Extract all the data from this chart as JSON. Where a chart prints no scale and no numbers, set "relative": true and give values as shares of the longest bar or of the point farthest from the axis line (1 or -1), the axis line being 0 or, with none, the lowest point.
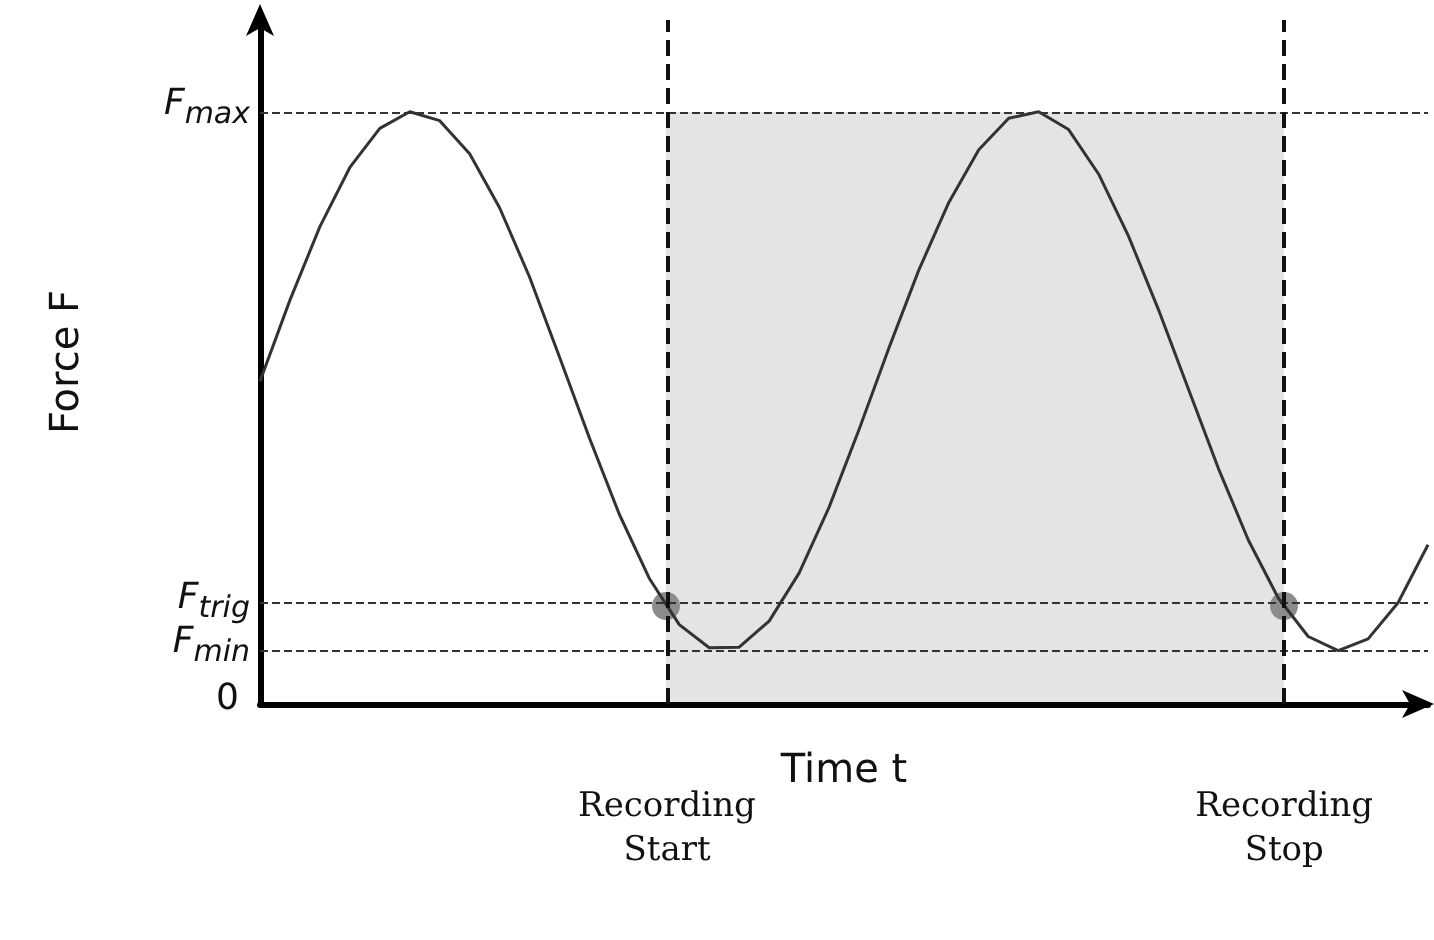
{
  "chart_data": {
    "type": "line",
    "relative": true,
    "xlabel": "Time t",
    "ylabel": "Force F",
    "grid": false,
    "marker": "none",
    "line_style": "solid",
    "categories": [
      null,
      null,
      null,
      null,
      null,
      null,
      null,
      null,
      null,
      null,
      null,
      null,
      null,
      null,
      null,
      null,
      null,
      null,
      null,
      null,
      null,
      null,
      null,
      null,
      null,
      null,
      null,
      null,
      null,
      null,
      null,
      null,
      null,
      null,
      null,
      null,
      null,
      null,
      null,
      null
    ],
    "series": [
      {
        "color": "#333333",
        "values": [
          0.545,
          0.682,
          0.806,
          0.906,
          0.972,
          1,
          0.985,
          0.929,
          0.838,
          0.721,
          0.586,
          0.449,
          0.32,
          0.212,
          0.134,
          0.095,
          0.096,
          0.14,
          0.221,
          0.332,
          0.463,
          0.601,
          0.733,
          0.847,
          0.936,
          0.989,
          1,
          0.97,
          0.895,
          0.79,
          0.666,
          0.532,
          0.398,
          0.277,
          0.179,
          0.114,
          0.09,
          0.11,
          0.171,
          0.269
        ]
      }
    ],
    "ref_lines": [
      {
        "axis": "y",
        "value": 1,
        "label": "F$_{max}$",
        "line_style": "dashed",
        "color": "#333333"
      },
      {
        "axis": "y",
        "value": 0.166,
        "label": "F$_{trig}$",
        "line_style": "dashed",
        "color": "#333333"
      },
      {
        "axis": "y",
        "value": 0.09,
        "label": "F$_{min}$",
        "line_style": "dashed",
        "color": "#333333"
      },
      {
        "axis": "x",
        "label": "Recording\nStart",
        "line_style": "dashed",
        "color": "#111111"
      },
      {
        "axis": "x",
        "label": "Recording\nStop",
        "line_style": "dashed",
        "color": "#111111"
      }
    ],
    "annotations": [
      "0"
    ]
  }
}
